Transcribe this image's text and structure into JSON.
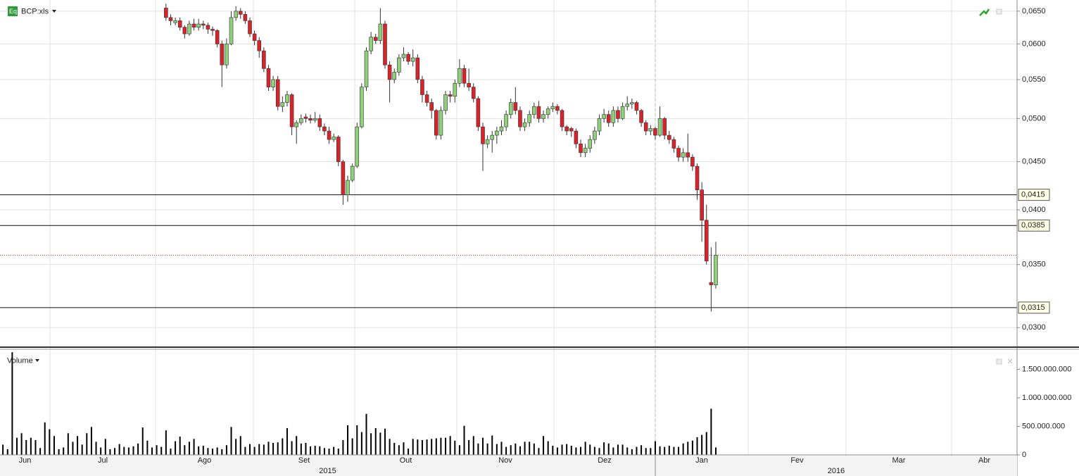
{
  "chart_data": [
    {
      "type": "candlestick",
      "title": "BCP:xls",
      "log_scale": true,
      "grid": true,
      "up_color": "#8fd07a",
      "down_color": "#d8232a",
      "ylim": [
        0.0286,
        0.0668
      ],
      "yticks": [
        {
          "value": 0.065,
          "label": "0,0650"
        },
        {
          "value": 0.06,
          "label": "0,0600"
        },
        {
          "value": 0.055,
          "label": "0,0550"
        },
        {
          "value": 0.05,
          "label": "0,0500"
        },
        {
          "value": 0.045,
          "label": "0,0450"
        },
        {
          "value": 0.04,
          "label": "0,0400"
        },
        {
          "value": 0.035,
          "label": "0,0350"
        },
        {
          "value": 0.03,
          "label": "0,0300"
        }
      ],
      "hlines": [
        {
          "value": 0.0415,
          "label": "0,0415"
        },
        {
          "value": 0.0385,
          "label": "0,0385"
        },
        {
          "value": 0.0315,
          "label": "0,0315"
        }
      ],
      "months": [
        "Jun",
        "Jul",
        "Ago",
        "Set",
        "Out",
        "Nov",
        "Dez",
        "Jan",
        "Fev",
        "Mar",
        "Abr"
      ],
      "years": [
        "2015",
        "2016"
      ],
      "open": [
        0.0655,
        0.064,
        0.0632,
        0.0635,
        0.0625,
        0.0615,
        0.063,
        0.0625,
        0.063,
        0.0628,
        0.0622,
        0.062,
        0.06,
        0.057,
        0.06,
        0.064,
        0.065,
        0.0645,
        0.0635,
        0.0615,
        0.0605,
        0.059,
        0.0565,
        0.054,
        0.055,
        0.0515,
        0.052,
        0.053,
        0.049,
        0.0495,
        0.0502,
        0.05,
        0.0498,
        0.05,
        0.049,
        0.0485,
        0.0475,
        0.0478,
        0.045,
        0.0415,
        0.043,
        0.0445,
        0.049,
        0.054,
        0.059,
        0.061,
        0.0605,
        0.063,
        0.057,
        0.055,
        0.056,
        0.058,
        0.0585,
        0.0575,
        0.058,
        0.055,
        0.053,
        0.052,
        0.051,
        0.048,
        0.051,
        0.053,
        0.0528,
        0.0545,
        0.0565,
        0.0545,
        0.054,
        0.0525,
        0.049,
        0.047,
        0.0475,
        0.048,
        0.0485,
        0.049,
        0.0505,
        0.052,
        0.051,
        0.049,
        0.0495,
        0.0505,
        0.0515,
        0.05,
        0.0505,
        0.0512,
        0.0515,
        0.051,
        0.049,
        0.0488,
        0.0485,
        0.047,
        0.046,
        0.0465,
        0.0475,
        0.0485,
        0.05,
        0.0505,
        0.0495,
        0.051,
        0.05,
        0.0515,
        0.0518,
        0.052,
        0.051,
        0.0495,
        0.0485,
        0.0488,
        0.048,
        0.05,
        0.048,
        0.0475,
        0.0465,
        0.0455,
        0.046,
        0.0455,
        0.0445,
        0.042,
        0.039,
        0.0335,
        0.0333
      ],
      "close": [
        0.064,
        0.0635,
        0.0635,
        0.0625,
        0.0615,
        0.063,
        0.0625,
        0.063,
        0.0628,
        0.0622,
        0.062,
        0.06,
        0.057,
        0.06,
        0.064,
        0.065,
        0.0645,
        0.0635,
        0.0615,
        0.0605,
        0.059,
        0.0565,
        0.054,
        0.055,
        0.0515,
        0.052,
        0.053,
        0.049,
        0.0495,
        0.05,
        0.05,
        0.0498,
        0.05,
        0.049,
        0.0485,
        0.0475,
        0.0478,
        0.045,
        0.0415,
        0.043,
        0.0445,
        0.049,
        0.054,
        0.059,
        0.061,
        0.0605,
        0.063,
        0.057,
        0.055,
        0.056,
        0.058,
        0.0585,
        0.0575,
        0.058,
        0.055,
        0.053,
        0.052,
        0.051,
        0.048,
        0.051,
        0.053,
        0.0528,
        0.0545,
        0.0565,
        0.0545,
        0.054,
        0.0525,
        0.049,
        0.047,
        0.0475,
        0.048,
        0.0485,
        0.049,
        0.0505,
        0.052,
        0.051,
        0.049,
        0.0495,
        0.0505,
        0.0515,
        0.05,
        0.0505,
        0.0512,
        0.0515,
        0.051,
        0.049,
        0.0485,
        0.0485,
        0.047,
        0.046,
        0.0465,
        0.0475,
        0.0485,
        0.05,
        0.0505,
        0.0495,
        0.051,
        0.05,
        0.0515,
        0.0518,
        0.052,
        0.051,
        0.0495,
        0.0485,
        0.0488,
        0.048,
        0.05,
        0.048,
        0.0475,
        0.0465,
        0.0455,
        0.046,
        0.0455,
        0.0445,
        0.042,
        0.039,
        0.0353,
        0.0333,
        0.0358
      ],
      "high": [
        0.0662,
        0.0645,
        0.064,
        0.064,
        0.0628,
        0.0635,
        0.0638,
        0.0638,
        0.0635,
        0.0632,
        0.0626,
        0.0622,
        0.0605,
        0.0608,
        0.065,
        0.0658,
        0.0655,
        0.065,
        0.064,
        0.062,
        0.061,
        0.0595,
        0.057,
        0.0555,
        0.0555,
        0.0528,
        0.0535,
        0.0532,
        0.0498,
        0.0505,
        0.0506,
        0.0505,
        0.0508,
        0.0505,
        0.0494,
        0.049,
        0.0482,
        0.048,
        0.0452,
        0.0435,
        0.0448,
        0.0495,
        0.0545,
        0.0595,
        0.0618,
        0.0615,
        0.0655,
        0.0635,
        0.0575,
        0.0565,
        0.0585,
        0.0595,
        0.0588,
        0.0592,
        0.0585,
        0.0555,
        0.0535,
        0.0525,
        0.0512,
        0.0515,
        0.0535,
        0.0535,
        0.055,
        0.0578,
        0.057,
        0.0565,
        0.0545,
        0.0528,
        0.0495,
        0.048,
        0.0485,
        0.049,
        0.0498,
        0.051,
        0.0525,
        0.054,
        0.0515,
        0.05,
        0.051,
        0.052,
        0.0522,
        0.051,
        0.0515,
        0.052,
        0.0518,
        0.0512,
        0.0492,
        0.049,
        0.0488,
        0.0475,
        0.047,
        0.048,
        0.049,
        0.0505,
        0.0512,
        0.051,
        0.0515,
        0.0515,
        0.052,
        0.0528,
        0.0525,
        0.0522,
        0.0512,
        0.0498,
        0.0492,
        0.049,
        0.0515,
        0.0502,
        0.0485,
        0.0478,
        0.0468,
        0.0465,
        0.0482,
        0.0458,
        0.0448,
        0.0428,
        0.0405,
        0.0365,
        0.037
      ],
      "low": [
        0.0635,
        0.0628,
        0.0628,
        0.062,
        0.0608,
        0.0612,
        0.062,
        0.062,
        0.0622,
        0.0615,
        0.0612,
        0.0595,
        0.054,
        0.0565,
        0.0598,
        0.0635,
        0.0638,
        0.063,
        0.061,
        0.0598,
        0.058,
        0.056,
        0.0535,
        0.0535,
        0.051,
        0.0508,
        0.0515,
        0.048,
        0.047,
        0.0492,
        0.0495,
        0.0494,
        0.0495,
        0.0485,
        0.048,
        0.047,
        0.0472,
        0.0445,
        0.0405,
        0.0408,
        0.0428,
        0.0443,
        0.0488,
        0.0535,
        0.0585,
        0.06,
        0.06,
        0.0565,
        0.052,
        0.0545,
        0.0555,
        0.0575,
        0.057,
        0.0568,
        0.0545,
        0.052,
        0.0515,
        0.05,
        0.0475,
        0.0475,
        0.0505,
        0.052,
        0.052,
        0.054,
        0.054,
        0.0535,
        0.052,
        0.0485,
        0.044,
        0.0465,
        0.046,
        0.047,
        0.048,
        0.0485,
        0.05,
        0.0505,
        0.0485,
        0.0485,
        0.049,
        0.05,
        0.0495,
        0.0495,
        0.05,
        0.0508,
        0.0505,
        0.0485,
        0.048,
        0.0478,
        0.0465,
        0.0455,
        0.0455,
        0.046,
        0.047,
        0.048,
        0.0495,
        0.049,
        0.049,
        0.0495,
        0.0498,
        0.051,
        0.0512,
        0.0505,
        0.049,
        0.048,
        0.048,
        0.0475,
        0.0478,
        0.0475,
        0.047,
        0.046,
        0.045,
        0.045,
        0.045,
        0.044,
        0.041,
        0.037,
        0.035,
        0.0312,
        0.033
      ]
    },
    {
      "type": "bar",
      "title": "Volume",
      "color": "#000000",
      "ylim": [
        0,
        1840000000
      ],
      "yticks": [
        0,
        {
          "value": 500000000,
          "label": "500.000.000"
        },
        {
          "value": 1000000000,
          "label": "1.000.000.000"
        },
        {
          "value": 1500000000,
          "label": "1.500.000.000"
        }
      ],
      "values": [
        180000000,
        100000000,
        1800000000,
        300000000,
        380000000,
        260000000,
        300000000,
        260000000,
        120000000,
        570000000,
        450000000,
        330000000,
        100000000,
        130000000,
        380000000,
        230000000,
        330000000,
        180000000,
        380000000,
        490000000,
        230000000,
        130000000,
        280000000,
        100000000,
        120000000,
        190000000,
        140000000,
        130000000,
        150000000,
        200000000,
        480000000,
        250000000,
        130000000,
        170000000,
        140000000,
        430000000,
        110000000,
        240000000,
        320000000,
        170000000,
        230000000,
        280000000,
        150000000,
        160000000,
        120000000,
        110000000,
        130000000,
        100000000,
        170000000,
        490000000,
        280000000,
        330000000,
        140000000,
        190000000,
        140000000,
        190000000,
        180000000,
        230000000,
        210000000,
        220000000,
        290000000,
        470000000,
        240000000,
        330000000,
        200000000,
        210000000,
        150000000,
        160000000,
        150000000,
        120000000,
        110000000,
        140000000,
        110000000,
        260000000,
        520000000,
        290000000,
        520000000,
        400000000,
        720000000,
        380000000,
        470000000,
        390000000,
        460000000,
        280000000,
        210000000,
        170000000,
        220000000,
        110000000,
        280000000,
        270000000,
        260000000,
        270000000,
        280000000,
        290000000,
        300000000,
        300000000,
        330000000,
        250000000,
        170000000,
        510000000,
        260000000,
        330000000,
        200000000,
        300000000,
        200000000,
        340000000,
        190000000,
        230000000,
        140000000,
        170000000,
        200000000,
        150000000,
        230000000,
        230000000,
        200000000,
        120000000,
        330000000,
        240000000,
        160000000,
        130000000,
        180000000,
        190000000,
        160000000,
        130000000,
        140000000,
        230000000,
        180000000,
        140000000,
        120000000,
        220000000,
        200000000,
        130000000,
        180000000,
        180000000,
        130000000,
        100000000,
        140000000,
        170000000,
        120000000,
        120000000,
        240000000,
        150000000,
        140000000,
        160000000,
        140000000,
        140000000,
        200000000,
        230000000,
        250000000,
        310000000,
        350000000,
        400000000,
        810000000,
        130000000
      ]
    }
  ]
}
